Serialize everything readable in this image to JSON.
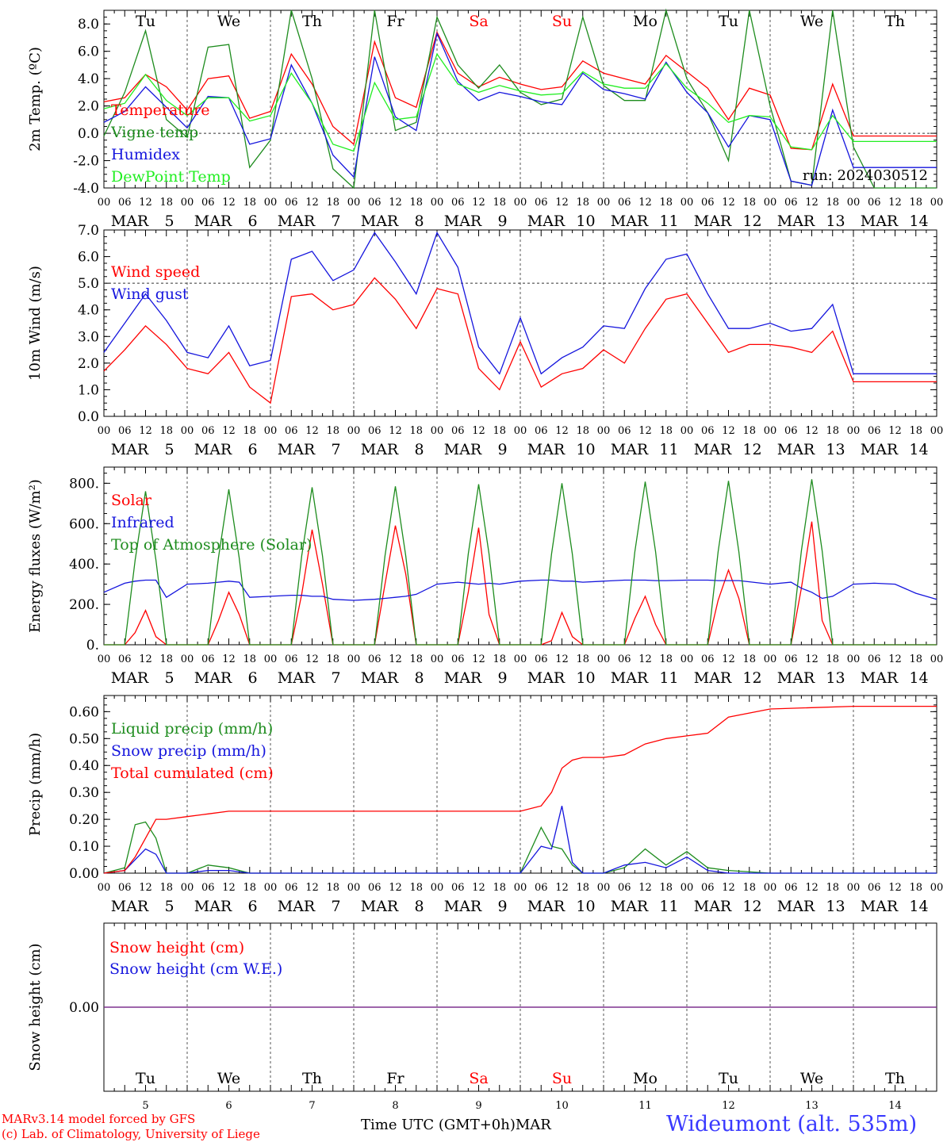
{
  "colors": {
    "red": "#ff0000",
    "green": "#1e8c1e",
    "blue": "#1515dd",
    "lightgreen": "#22ee22",
    "purple": "#7a2a8a",
    "weekend": "#ff0000"
  },
  "days": [
    {
      "weekday": "Tu",
      "month": "MAR",
      "day": "5",
      "weekend": false
    },
    {
      "weekday": "We",
      "month": "MAR",
      "day": "6",
      "weekend": false
    },
    {
      "weekday": "Th",
      "month": "MAR",
      "day": "7",
      "weekend": false
    },
    {
      "weekday": "Fr",
      "month": "MAR",
      "day": "8",
      "weekend": false
    },
    {
      "weekday": "Sa",
      "month": "MAR",
      "day": "9",
      "weekend": true
    },
    {
      "weekday": "Su",
      "month": "MAR",
      "day": "10",
      "weekend": true
    },
    {
      "weekday": "Mo",
      "month": "MAR",
      "day": "11",
      "weekend": false
    },
    {
      "weekday": "Tu",
      "month": "MAR",
      "day": "12",
      "weekend": false
    },
    {
      "weekday": "We",
      "month": "MAR",
      "day": "13",
      "weekend": false
    },
    {
      "weekday": "Th",
      "month": "MAR",
      "day": "14",
      "weekend": false
    }
  ],
  "hour_ticks": [
    "00",
    "06",
    "12",
    "18"
  ],
  "footer": {
    "credit_line1": "MARv3.14 model forced by GFS",
    "credit_line2": "(c) Lab. of Climatology, University of Liege",
    "x_title": "Time UTC (GMT+0h)MAR",
    "station": "Wideumont (alt. 535m)"
  },
  "chart_data": [
    {
      "type": "line",
      "ylabel": "2m Temp. (ºC)",
      "ylim": [
        -4,
        9
      ],
      "yticks": [
        "-4.0",
        "-2.0",
        "0.0",
        "2.0",
        "4.0",
        "6.0",
        "8.0"
      ],
      "reference_line": 0,
      "annotation": "run: 2024030512",
      "x_hours": [
        0,
        6,
        12,
        18,
        24,
        30,
        36,
        42,
        48,
        54,
        60,
        66,
        72,
        78,
        84,
        90,
        96,
        102,
        108,
        114,
        120,
        126,
        132,
        138,
        144,
        150,
        156,
        162,
        168,
        174,
        180,
        186,
        192,
        198,
        204,
        210,
        216,
        222,
        228,
        234,
        240
      ],
      "series": [
        {
          "name": "Temperature",
          "color": "red",
          "values": [
            2.3,
            2.6,
            4.3,
            3.4,
            1.7,
            4.0,
            4.2,
            1.1,
            1.6,
            5.8,
            3.6,
            0.5,
            -0.8,
            6.7,
            2.6,
            1.9,
            7.4,
            4.4,
            3.4,
            4.1,
            3.6,
            3.2,
            3.4,
            5.3,
            4.4,
            4.0,
            3.6,
            5.7,
            4.5,
            3.3,
            1.0,
            3.3,
            2.8,
            -1.1,
            -1.2,
            3.6,
            -0.2,
            -0.2,
            -0.2,
            -0.2,
            -0.2
          ]
        },
        {
          "name": "Vigne temp",
          "color": "green",
          "values": [
            -0.2,
            3.0,
            7.5,
            1.0,
            -0.3,
            6.3,
            6.5,
            -2.5,
            -0.5,
            9.5,
            4.0,
            -2.6,
            -4.3,
            9.5,
            0.2,
            0.8,
            8.5,
            5.0,
            3.3,
            5.0,
            3.0,
            2.1,
            2.5,
            8.5,
            3.5,
            2.4,
            2.4,
            9.5,
            4.0,
            1.5,
            -2.0,
            9.0,
            2.0,
            -3.5,
            -3.8,
            9.5,
            -1.0,
            -4.0,
            -4.0,
            -4.0,
            -4.0
          ]
        },
        {
          "name": "Humidex",
          "color": "blue",
          "values": [
            0.8,
            1.6,
            3.4,
            1.9,
            0.4,
            2.7,
            2.6,
            -0.8,
            -0.4,
            5.0,
            2.2,
            -1.6,
            -3.2,
            5.6,
            1.2,
            0.2,
            7.3,
            3.8,
            2.4,
            3.0,
            2.7,
            2.3,
            2.1,
            4.4,
            3.2,
            2.9,
            2.5,
            5.2,
            3.0,
            1.5,
            -1.0,
            1.3,
            1.0,
            -3.5,
            -3.8,
            1.7,
            -2.5,
            -2.5,
            -2.5,
            -2.5,
            -2.5
          ]
        },
        {
          "name": "DewPoint Temp",
          "color": "lightgreen",
          "values": [
            1.8,
            2.2,
            4.3,
            2.4,
            1.3,
            2.6,
            2.6,
            0.9,
            1.3,
            4.4,
            2.2,
            -0.8,
            -1.3,
            3.7,
            1.0,
            1.2,
            5.8,
            3.6,
            3.0,
            3.5,
            3.1,
            2.8,
            2.9,
            4.5,
            3.6,
            3.3,
            3.3,
            5.1,
            3.3,
            2.2,
            0.8,
            1.3,
            1.2,
            -1.0,
            -1.2,
            1.3,
            -0.6,
            -0.6,
            -0.6,
            -0.6,
            -0.6
          ]
        }
      ]
    },
    {
      "type": "line",
      "ylabel": "10m Wind (m/s)",
      "ylim": [
        0,
        7
      ],
      "yticks": [
        "0.0",
        "1.0",
        "2.0",
        "3.0",
        "4.0",
        "5.0",
        "6.0",
        "7.0"
      ],
      "reference_line": 5,
      "x_hours": [
        0,
        6,
        12,
        18,
        24,
        30,
        36,
        42,
        48,
        54,
        60,
        66,
        72,
        78,
        84,
        90,
        96,
        102,
        108,
        114,
        120,
        126,
        132,
        138,
        144,
        150,
        156,
        162,
        168,
        174,
        180,
        186,
        192,
        198,
        204,
        210,
        216,
        222,
        228,
        234,
        240
      ],
      "series": [
        {
          "name": "Wind speed",
          "color": "red",
          "values": [
            1.7,
            2.5,
            3.4,
            2.7,
            1.8,
            1.6,
            2.4,
            1.1,
            0.5,
            4.5,
            4.6,
            4.0,
            4.2,
            5.2,
            4.4,
            3.3,
            4.8,
            4.6,
            1.8,
            1.0,
            2.8,
            1.1,
            1.6,
            1.8,
            2.5,
            2.0,
            3.3,
            4.4,
            4.6,
            3.5,
            2.4,
            2.7,
            2.7,
            2.6,
            2.4,
            3.2,
            1.3,
            1.3,
            1.3,
            1.3,
            1.3
          ]
        },
        {
          "name": "Wind gust",
          "color": "blue",
          "values": [
            2.4,
            3.5,
            4.6,
            3.6,
            2.4,
            2.2,
            3.4,
            1.9,
            2.1,
            5.9,
            6.2,
            5.1,
            5.5,
            6.9,
            5.8,
            4.6,
            6.9,
            5.6,
            2.6,
            1.6,
            3.7,
            1.6,
            2.2,
            2.6,
            3.4,
            3.3,
            4.8,
            5.9,
            6.1,
            4.6,
            3.3,
            3.3,
            3.5,
            3.2,
            3.3,
            4.2,
            1.6,
            1.6,
            1.6,
            1.6,
            1.6
          ]
        }
      ]
    },
    {
      "type": "line",
      "ylabel": "Energy fluxes (W/m²)",
      "ylim": [
        0,
        880
      ],
      "yticks": [
        "0.",
        "200.",
        "400.",
        "600.",
        "800."
      ],
      "x_hours": [
        0,
        6,
        9,
        12,
        15,
        18,
        24,
        30,
        33,
        36,
        39,
        42,
        48,
        54,
        57,
        60,
        63,
        66,
        72,
        78,
        81,
        84,
        87,
        90,
        96,
        102,
        105,
        108,
        111,
        114,
        120,
        126,
        129,
        132,
        135,
        138,
        144,
        150,
        153,
        156,
        159,
        162,
        168,
        174,
        177,
        180,
        183,
        186,
        192,
        198,
        201,
        204,
        207,
        210,
        216,
        222,
        228,
        234,
        240
      ],
      "series": [
        {
          "name": "Solar",
          "color": "red",
          "values": [
            0,
            0,
            60,
            170,
            40,
            0,
            0,
            0,
            120,
            260,
            150,
            0,
            0,
            0,
            250,
            570,
            300,
            0,
            0,
            0,
            300,
            590,
            350,
            0,
            0,
            0,
            260,
            580,
            150,
            0,
            0,
            0,
            20,
            160,
            40,
            0,
            0,
            0,
            130,
            240,
            100,
            0,
            0,
            0,
            220,
            370,
            230,
            0,
            0,
            0,
            280,
            610,
            120,
            0,
            0,
            0,
            0,
            0,
            0
          ]
        },
        {
          "name": "Infrared",
          "color": "blue",
          "values": [
            260,
            305,
            315,
            320,
            320,
            235,
            300,
            305,
            310,
            315,
            310,
            235,
            240,
            245,
            245,
            240,
            240,
            225,
            220,
            225,
            230,
            235,
            240,
            250,
            300,
            310,
            305,
            300,
            305,
            300,
            315,
            320,
            320,
            315,
            315,
            310,
            315,
            320,
            320,
            320,
            318,
            318,
            320,
            320,
            318,
            318,
            318,
            312,
            300,
            310,
            280,
            260,
            230,
            240,
            300,
            305,
            300,
            255,
            225
          ]
        },
        {
          "name": "Top of Atmosphere (Solar)",
          "color": "green",
          "values": [
            0,
            0,
            420,
            760,
            420,
            0,
            0,
            0,
            430,
            770,
            430,
            0,
            0,
            0,
            440,
            780,
            440,
            0,
            0,
            0,
            440,
            785,
            440,
            0,
            0,
            0,
            450,
            795,
            450,
            0,
            0,
            0,
            450,
            800,
            450,
            0,
            0,
            0,
            460,
            808,
            460,
            0,
            0,
            0,
            460,
            812,
            460,
            0,
            0,
            0,
            465,
            820,
            465,
            0,
            0,
            0,
            0,
            0,
            0
          ]
        }
      ]
    },
    {
      "type": "line",
      "ylabel": "Precip (mm/h)",
      "ylim": [
        0,
        0.66
      ],
      "yticks": [
        "0.00",
        "0.10",
        "0.20",
        "0.30",
        "0.40",
        "0.50",
        "0.60"
      ],
      "x_hours": [
        0,
        6,
        9,
        12,
        15,
        18,
        24,
        30,
        36,
        42,
        48,
        72,
        96,
        120,
        126,
        129,
        132,
        135,
        138,
        144,
        150,
        156,
        162,
        168,
        174,
        180,
        192,
        216,
        240
      ],
      "series": [
        {
          "name": "Liquid precip (mm/h)",
          "color": "green",
          "values": [
            0,
            0.02,
            0.18,
            0.19,
            0.13,
            0,
            0,
            0.03,
            0.02,
            0,
            0,
            0,
            0,
            0,
            0.17,
            0.1,
            0.09,
            0.03,
            0,
            0,
            0.02,
            0.09,
            0.03,
            0.08,
            0.02,
            0.01,
            0,
            0,
            0
          ]
        },
        {
          "name": "Snow precip (mm/h)",
          "color": "blue",
          "values": [
            0,
            0.01,
            0.05,
            0.09,
            0.07,
            0,
            0,
            0.01,
            0.01,
            0,
            0,
            0,
            0,
            0,
            0.1,
            0.09,
            0.25,
            0.04,
            0,
            0,
            0.03,
            0.04,
            0.02,
            0.06,
            0.01,
            0,
            0,
            0,
            0
          ]
        },
        {
          "name": "Total cumulated (cm)",
          "color": "red",
          "values": [
            0,
            0.01,
            0.06,
            0.13,
            0.2,
            0.2,
            0.21,
            0.22,
            0.23,
            0.23,
            0.23,
            0.23,
            0.23,
            0.23,
            0.25,
            0.3,
            0.39,
            0.42,
            0.43,
            0.43,
            0.44,
            0.48,
            0.5,
            0.51,
            0.52,
            0.58,
            0.61,
            0.62,
            0.62
          ]
        }
      ]
    },
    {
      "type": "line",
      "ylabel": "Snow height (cm)",
      "ylim": [
        -1,
        1
      ],
      "yticks": [
        "0.00"
      ],
      "x_hours": [
        0,
        240
      ],
      "series": [
        {
          "name": "Snow height (cm)",
          "color": "red",
          "values": [
            0,
            0
          ]
        },
        {
          "name": "Snow height (cm W.E.)",
          "color": "blue",
          "values": [
            0,
            0
          ]
        }
      ]
    }
  ]
}
